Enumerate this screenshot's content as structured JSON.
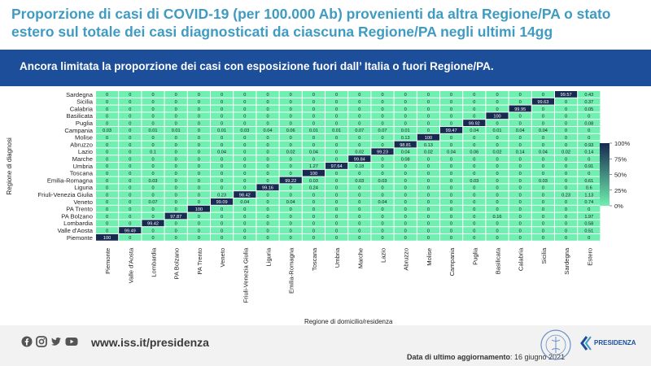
{
  "header": {
    "title": "Proporzione di casi di COVID-19 (per 100.000 Ab) provenienti da altra Regione/PA o stato estero sul totale dei casi diagnosticati da ciascuna Regione/PA negli ultimi 14gg",
    "subtitle": "Ancora limitata la proporzione dei casi con esposizione fuori dall’ Italia o fuori Regione/PA."
  },
  "chart_data": {
    "type": "heatmap",
    "xlabel": "Regione di domicilio/residenza",
    "ylabel": "Regione di diagnosi",
    "x": [
      "Piemonte",
      "Valle d'Aosta",
      "Lombardia",
      "PA Bolzano",
      "PA Trento",
      "Veneto",
      "Friuli-Venezia Giulia",
      "Liguria",
      "Emilia-Romagna",
      "Toscana",
      "Umbria",
      "Marche",
      "Lazio",
      "Abruzzo",
      "Molise",
      "Campania",
      "Puglia",
      "Basilicata",
      "Calabria",
      "Sicilia",
      "Sardegna",
      "Estero"
    ],
    "y": [
      "Sardegna",
      "Sicilia",
      "Calabria",
      "Basilicata",
      "Puglia",
      "Campania",
      "Molise",
      "Abruzzo",
      "Lazio",
      "Marche",
      "Umbria",
      "Toscana",
      "Emilia-Romagna",
      "Liguria",
      "Friuli-Venezia Giulia",
      "Veneto",
      "PA Trento",
      "PA Bolzano",
      "Lombardia",
      "Valle d'Aosta",
      "Piemonte"
    ],
    "values": [
      [
        "0",
        "0",
        "0",
        "0",
        "0",
        "0",
        "0",
        "0",
        "0",
        "0",
        "0",
        "0",
        "0",
        "0",
        "0",
        "0",
        "0",
        "0",
        "0",
        "0",
        "99.57",
        "0.43"
      ],
      [
        "0",
        "0",
        "0",
        "0",
        "0",
        "0",
        "0",
        "0",
        "0",
        "0",
        "0",
        "0",
        "0",
        "0",
        "0",
        "0",
        "0",
        "0",
        "0",
        "99.63",
        "0",
        "0.37"
      ],
      [
        "0",
        "0",
        "0",
        "0",
        "0",
        "0",
        "0",
        "0",
        "0",
        "0",
        "0",
        "0",
        "0",
        "0",
        "0",
        "0",
        "0",
        "0",
        "99.95",
        "0",
        "0",
        "0.05"
      ],
      [
        "0",
        "0",
        "0",
        "0",
        "0",
        "0",
        "0",
        "0",
        "0",
        "0",
        "0",
        "0",
        "0",
        "0",
        "0",
        "0",
        "0",
        "100",
        "0",
        "0",
        "0",
        "0"
      ],
      [
        "0",
        "0",
        "0",
        "0",
        "0",
        "0",
        "0",
        "0",
        "0",
        "0",
        "0",
        "0",
        "0",
        "0",
        "0",
        "0",
        "99.92",
        "0",
        "0",
        "0",
        "0",
        "0.08"
      ],
      [
        "0.03",
        "0",
        "0.01",
        "0.01",
        "0",
        "0.01",
        "0.03",
        "0.04",
        "0.06",
        "0.01",
        "0.01",
        "0.07",
        "0.07",
        "0.01",
        "0",
        "99.47",
        "0.04",
        "0.01",
        "0.04",
        "0.04",
        "0",
        "0"
      ],
      [
        "0",
        "0",
        "0",
        "0",
        "0",
        "0",
        "0",
        "0",
        "0",
        "0",
        "0",
        "0",
        "0",
        "0.13",
        "100",
        "0",
        "0",
        "0",
        "0",
        "0",
        "0",
        "0"
      ],
      [
        "0",
        "0",
        "0",
        "0",
        "0",
        "0",
        "0",
        "0",
        "0",
        "0",
        "0",
        "0",
        "0",
        "98.81",
        "0.13",
        "0",
        "0",
        "0",
        "0",
        "0",
        "0",
        "0.93"
      ],
      [
        "0",
        "0",
        "0.1",
        "0",
        "0",
        "0.04",
        "0",
        "0",
        "0.02",
        "0.04",
        "0",
        "0.02",
        "99.23",
        "0.04",
        "0.02",
        "0.04",
        "0.06",
        "0.02",
        "0.14",
        "0.04",
        "0.02",
        "0.14"
      ],
      [
        "0",
        "0",
        "0",
        "0",
        "0",
        "0",
        "0",
        "0",
        "0",
        "0",
        "0",
        "99.84",
        "0",
        "0.08",
        "0",
        "0",
        "0",
        "0",
        "0",
        "0",
        "0",
        "0"
      ],
      [
        "0",
        "0",
        "0",
        "0",
        "0",
        "0",
        "0",
        "0",
        "0",
        "1.27",
        "97.64",
        "0.18",
        "0",
        "0",
        "0",
        "0",
        "0",
        "0",
        "0",
        "0",
        "0",
        "0.91"
      ],
      [
        "0",
        "0",
        "0",
        "0",
        "0",
        "0",
        "0",
        "0",
        "0",
        "100",
        "0",
        "0",
        "0",
        "0",
        "0",
        "0",
        "0",
        "0",
        "0",
        "0",
        "0",
        "0"
      ],
      [
        "0",
        "0",
        "0.03",
        "0",
        "0",
        "0",
        "0",
        "0",
        "99.22",
        "0.03",
        "0",
        "0.03",
        "0.03",
        "0",
        "0",
        "0",
        "0.03",
        "0",
        "0",
        "0.03",
        "0",
        "0.61"
      ],
      [
        "0",
        "0",
        "0",
        "0",
        "0",
        "0",
        "0",
        "99.16",
        "0",
        "0.24",
        "0",
        "0",
        "0",
        "0",
        "0",
        "0",
        "0",
        "0",
        "0",
        "0",
        "0",
        "0.6"
      ],
      [
        "0",
        "0",
        "0",
        "0",
        "0",
        "0.23",
        "98.42",
        "0",
        "0",
        "0",
        "0",
        "0",
        "0",
        "0",
        "0",
        "0",
        "0",
        "0",
        "0",
        "0",
        "0.23",
        "1.13"
      ],
      [
        "0",
        "0",
        "0.07",
        "0",
        "0",
        "99.09",
        "0.04",
        "0",
        "0.04",
        "0",
        "0",
        "0",
        "0.04",
        "0",
        "0",
        "0",
        "0",
        "0",
        "0",
        "0",
        "0",
        "0.74"
      ],
      [
        "0",
        "0",
        "0",
        "0",
        "100",
        "0",
        "0",
        "0",
        "0",
        "0",
        "0",
        "0",
        "0",
        "0",
        "0",
        "0",
        "0",
        "0",
        "0",
        "0",
        "0",
        "0"
      ],
      [
        "0",
        "0",
        "0",
        "97.87",
        "0",
        "0",
        "0",
        "0",
        "0",
        "0",
        "0",
        "0",
        "0",
        "0",
        "0",
        "0",
        "0",
        "0.16",
        "0",
        "0",
        "0",
        "1.97"
      ],
      [
        "0",
        "0",
        "99.42",
        "0",
        "0",
        "0",
        "0",
        "0",
        "0",
        "0",
        "0",
        "0",
        "0",
        "0",
        "0",
        "0",
        "0",
        "0",
        "0",
        "0",
        "0",
        "0.58"
      ],
      [
        "0",
        "99.49",
        "0",
        "0",
        "0",
        "0",
        "0",
        "0",
        "0",
        "0",
        "0",
        "0",
        "0",
        "0",
        "0",
        "0",
        "0",
        "0",
        "0",
        "0",
        "0",
        "0.51"
      ],
      [
        "100",
        "0",
        "0",
        "0",
        "0",
        "0",
        "0",
        "0",
        "0",
        "0",
        "0",
        "0",
        "0",
        "0",
        "0",
        "0",
        "0",
        "0",
        "0",
        "0",
        "0",
        "0"
      ]
    ],
    "colorbar": {
      "ticks": [
        "100%",
        "75%",
        "50%",
        "25%",
        "0%"
      ],
      "range": [
        0,
        100
      ],
      "low_color": "#6ff0b0",
      "high_color": "#17294f"
    },
    "grid": true
  },
  "footer": {
    "url": "www.iss.it/presidenza",
    "update_label": "Data di ultimo aggiornamento",
    "update_date": ": 16 giugno 2021",
    "presidenza": "PRESIDENZA",
    "social_icons": [
      "facebook-icon",
      "instagram-icon",
      "twitter-icon",
      "youtube-icon"
    ]
  },
  "colors": {
    "title": "#3f9bc2",
    "banner": "#1c4e99"
  }
}
